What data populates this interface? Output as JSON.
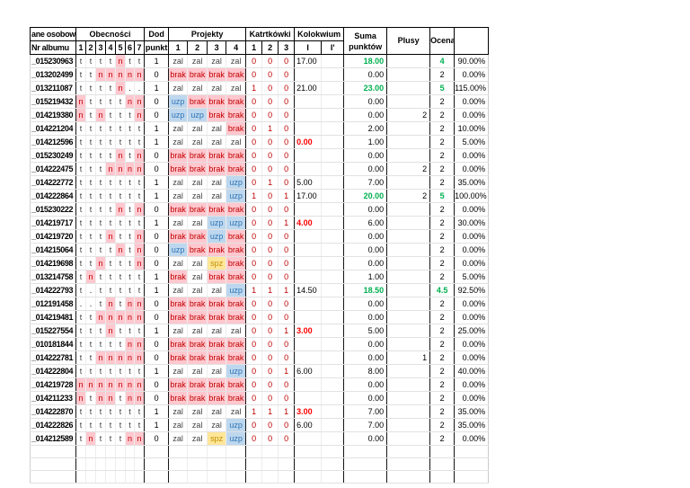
{
  "table": {
    "header": {
      "personal": "ane osobow",
      "nr_albumu": "Nr albumu",
      "obecnosci": "Obecności",
      "att_cols": [
        "1",
        "2",
        "3",
        "4",
        "5",
        "6",
        "7"
      ],
      "dod_line1": "Dod",
      "dod_line2": "punkt",
      "projekty": "Projekty",
      "proj_cols": [
        "1",
        "2",
        "3",
        "4"
      ],
      "kartkowki": "Katrtkówki",
      "kart_cols": [
        "1",
        "2",
        "3"
      ],
      "kolokwium": "Kolokwium",
      "kol_cols": [
        "I",
        "I'"
      ],
      "suma_line1": "Suma",
      "suma_line2": "punktów",
      "plusy": "Plusy",
      "ocena": "Ocena",
      "percent": ""
    },
    "colors": {
      "absent_bg": "#FFC7CE",
      "absent_text": "#C00000",
      "uzp_bg": "#BDD7EE",
      "uzp_text": "#2E75B6",
      "spz_bg": "#FFE699",
      "spz_text": "#BF8F00",
      "kartkowki_text": "#C00000",
      "fail_red": "#FF0000",
      "pass_green": "#00B050"
    },
    "empty_row_count": 3,
    "rows": [
      {
        "album": "_015230963",
        "att": [
          "t",
          "t",
          "t",
          "t",
          "n",
          "t",
          "t"
        ],
        "dod": "1",
        "proj": [
          "zal",
          "zal",
          "zal",
          "zal"
        ],
        "kart": [
          "0",
          "0",
          "0"
        ],
        "kol1": "17.00",
        "kol2": "",
        "suma": "18.00",
        "suma_green": true,
        "plusy": "",
        "ocena": "4",
        "ocena_green": true,
        "percent": "90.00%"
      },
      {
        "album": "_013202499",
        "att": [
          "t",
          "t",
          "n",
          "n",
          "n",
          "n",
          "n"
        ],
        "dod": "0",
        "proj": [
          "brak",
          "brak",
          "brak",
          "brak"
        ],
        "kart": [
          "0",
          "0",
          "0"
        ],
        "kol1": "",
        "kol2": "",
        "suma": "0.00",
        "plusy": "",
        "ocena": "2",
        "percent": "0.00%"
      },
      {
        "album": "_013211087",
        "att": [
          "t",
          "t",
          "t",
          "t",
          "n",
          ".",
          "."
        ],
        "dod": "1",
        "proj": [
          "zal",
          "zal",
          "zal",
          "zal"
        ],
        "kart": [
          "1",
          "0",
          "0"
        ],
        "kol1": "21.00",
        "kol2": "",
        "suma": "23.00",
        "suma_green": true,
        "plusy": "",
        "ocena": "5",
        "ocena_green": true,
        "percent": "115.00%"
      },
      {
        "album": "_015219432",
        "att": [
          "n",
          "t",
          "t",
          "t",
          "t",
          "n",
          "n"
        ],
        "dod": "0",
        "proj": [
          "uzp",
          "brak",
          "brak",
          "brak"
        ],
        "kart": [
          "0",
          "0",
          "0"
        ],
        "kol1": "",
        "kol2": "",
        "suma": "0.00",
        "plusy": "",
        "ocena": "2",
        "percent": "0.00%"
      },
      {
        "album": "_014219380",
        "att": [
          "n",
          "t",
          "n",
          "t",
          "t",
          "t",
          "n"
        ],
        "dod": "0",
        "proj": [
          "uzp",
          "uzp",
          "brak",
          "brak"
        ],
        "kart": [
          "0",
          "0",
          "0"
        ],
        "kol1": "",
        "kol2": "",
        "suma": "0.00",
        "plusy": "2",
        "ocena": "2",
        "percent": "0.00%"
      },
      {
        "album": "_014221204",
        "att": [
          "t",
          "t",
          "t",
          "t",
          "t",
          "t",
          "t"
        ],
        "dod": "1",
        "proj": [
          "zal",
          "zal",
          "zal",
          "brak"
        ],
        "kart": [
          "0",
          "1",
          "0"
        ],
        "kol1": "",
        "kol2": "",
        "suma": "2.00",
        "plusy": "",
        "ocena": "2",
        "percent": "10.00%"
      },
      {
        "album": "_014212596",
        "att": [
          "t",
          "t",
          "t",
          "t",
          "t",
          "t",
          "t"
        ],
        "dod": "1",
        "proj": [
          "zal",
          "zal",
          "zal",
          "zal"
        ],
        "kart": [
          "0",
          "0",
          "0"
        ],
        "kol1": "0.00",
        "kol1_red": true,
        "kol2": "",
        "suma": "1.00",
        "plusy": "",
        "ocena": "2",
        "percent": "5.00%"
      },
      {
        "album": "_015230249",
        "att": [
          "t",
          "t",
          "t",
          "t",
          "n",
          "t",
          "n"
        ],
        "dod": "0",
        "proj": [
          "brak",
          "brak",
          "brak",
          "brak"
        ],
        "kart": [
          "0",
          "0",
          "0"
        ],
        "kol1": "",
        "kol2": "",
        "suma": "0.00",
        "plusy": "",
        "ocena": "2",
        "percent": "0.00%"
      },
      {
        "album": "_014222475",
        "att": [
          "t",
          "t",
          "t",
          "n",
          "n",
          "n",
          "n"
        ],
        "dod": "0",
        "proj": [
          "brak",
          "brak",
          "brak",
          "brak"
        ],
        "kart": [
          "0",
          "0",
          "0"
        ],
        "kol1": "",
        "kol2": "",
        "suma": "0.00",
        "plusy": "2",
        "ocena": "2",
        "percent": "0.00%"
      },
      {
        "album": "_014222772",
        "att": [
          "t",
          "t",
          "t",
          "t",
          "t",
          "t",
          "t"
        ],
        "dod": "1",
        "proj": [
          "zal",
          "zal",
          "zal",
          "uzp"
        ],
        "kart": [
          "0",
          "1",
          "0"
        ],
        "kol1": "5.00",
        "kol2": "",
        "suma": "7.00",
        "plusy": "",
        "ocena": "2",
        "percent": "35.00%"
      },
      {
        "album": "_014222864",
        "att": [
          "t",
          "t",
          "t",
          "t",
          "t",
          "t",
          "t"
        ],
        "dod": "1",
        "proj": [
          "zal",
          "zal",
          "zal",
          "uzp"
        ],
        "kart": [
          "1",
          "0",
          "1"
        ],
        "kol1": "17.00",
        "kol2": "",
        "suma": "20.00",
        "suma_green": true,
        "plusy": "2",
        "ocena": "5",
        "ocena_green": true,
        "percent": "100.00%"
      },
      {
        "album": "_015230222",
        "att": [
          "t",
          "t",
          "t",
          "t",
          "n",
          "t",
          "n"
        ],
        "dod": "0",
        "proj": [
          "brak",
          "brak",
          "brak",
          "brak"
        ],
        "kart": [
          "0",
          "0",
          "0"
        ],
        "kol1": "",
        "kol2": "",
        "suma": "0.00",
        "plusy": "",
        "ocena": "2",
        "percent": "0.00%"
      },
      {
        "album": "_014219717",
        "att": [
          "t",
          "t",
          "t",
          "t",
          "t",
          "t",
          "t"
        ],
        "dod": "1",
        "proj": [
          "zal",
          "zal",
          "uzp",
          "uzp"
        ],
        "kart": [
          "0",
          "0",
          "1"
        ],
        "kol1": "4.00",
        "kol1_red": true,
        "kol2": "",
        "suma": "6.00",
        "plusy": "",
        "ocena": "2",
        "percent": "30.00%"
      },
      {
        "album": "_014219720",
        "att": [
          "t",
          "t",
          "t",
          "n",
          "t",
          "t",
          "n"
        ],
        "dod": "0",
        "proj": [
          "brak",
          "brak",
          "uzp",
          "brak"
        ],
        "kart": [
          "0",
          "0",
          "0"
        ],
        "kol1": "",
        "kol2": "",
        "suma": "0.00",
        "plusy": "",
        "ocena": "2",
        "percent": "0.00%"
      },
      {
        "album": "_014215064",
        "att": [
          "t",
          "t",
          "t",
          "t",
          "n",
          "t",
          "n"
        ],
        "dod": "0",
        "proj": [
          "uzp",
          "brak",
          "brak",
          "brak"
        ],
        "kart": [
          "0",
          "0",
          "0"
        ],
        "kol1": "",
        "kol2": "",
        "suma": "0.00",
        "plusy": "",
        "ocena": "2",
        "percent": "0.00%"
      },
      {
        "album": "_014219698",
        "att": [
          "t",
          "t",
          "n",
          "t",
          "t",
          "t",
          "n"
        ],
        "dod": "0",
        "proj": [
          "zal",
          "zal",
          "spz",
          "brak"
        ],
        "kart": [
          "0",
          "0",
          "0"
        ],
        "kol1": "",
        "kol2": "",
        "suma": "0.00",
        "plusy": "",
        "ocena": "2",
        "percent": "0.00%"
      },
      {
        "album": "_013214758",
        "att": [
          "t",
          "n",
          "t",
          "t",
          "t",
          "t",
          "t"
        ],
        "dod": "1",
        "proj": [
          "brak",
          "zal",
          "brak",
          "brak"
        ],
        "kart": [
          "0",
          "0",
          "0"
        ],
        "kol1": "",
        "kol2": "",
        "suma": "1.00",
        "plusy": "",
        "ocena": "2",
        "percent": "5.00%"
      },
      {
        "album": "_014222793",
        "att": [
          "t",
          ".",
          "t",
          "t",
          "t",
          "t",
          "t"
        ],
        "dod": "1",
        "proj": [
          "zal",
          "zal",
          "zal",
          "uzp"
        ],
        "kart": [
          "1",
          "1",
          "1"
        ],
        "kol1": "14.50",
        "kol2": "",
        "suma": "18.50",
        "suma_green": true,
        "plusy": "",
        "ocena": "4.5",
        "ocena_green": true,
        "percent": "92.50%"
      },
      {
        "album": "_012191458",
        "att": [
          ".",
          ".",
          "t",
          "n",
          "t",
          "n",
          "n"
        ],
        "dod": "0",
        "proj": [
          "brak",
          "brak",
          "brak",
          "brak"
        ],
        "kart": [
          "0",
          "0",
          "0"
        ],
        "kol1": "",
        "kol2": "",
        "suma": "0.00",
        "plusy": "",
        "ocena": "2",
        "percent": "0.00%"
      },
      {
        "album": "_014219481",
        "att": [
          "t",
          "t",
          "n",
          "n",
          "n",
          "n",
          "n"
        ],
        "dod": "0",
        "proj": [
          "brak",
          "brak",
          "brak",
          "brak"
        ],
        "kart": [
          "0",
          "0",
          "0"
        ],
        "kol1": "",
        "kol2": "",
        "suma": "0.00",
        "plusy": "",
        "ocena": "2",
        "percent": "0.00%"
      },
      {
        "album": "_015227554",
        "att": [
          "t",
          "t",
          "t",
          "n",
          "t",
          "t",
          "t"
        ],
        "dod": "1",
        "proj": [
          "zal",
          "zal",
          "zal",
          "zal"
        ],
        "kart": [
          "0",
          "0",
          "1"
        ],
        "kol1": "3.00",
        "kol1_red": true,
        "kol2": "",
        "suma": "5.00",
        "plusy": "",
        "ocena": "2",
        "percent": "25.00%"
      },
      {
        "album": "_010181844",
        "att": [
          "t",
          "t",
          "t",
          "t",
          "t",
          "n",
          "n"
        ],
        "dod": "0",
        "proj": [
          "brak",
          "brak",
          "brak",
          "brak"
        ],
        "kart": [
          "0",
          "0",
          "0"
        ],
        "kol1": "",
        "kol2": "",
        "suma": "0.00",
        "plusy": "",
        "ocena": "2",
        "percent": "0.00%"
      },
      {
        "album": "_014222781",
        "att": [
          "t",
          "t",
          "n",
          "n",
          "n",
          "n",
          "n"
        ],
        "dod": "0",
        "proj": [
          "brak",
          "brak",
          "brak",
          "brak"
        ],
        "kart": [
          "0",
          "0",
          "0"
        ],
        "kol1": "",
        "kol2": "",
        "suma": "0.00",
        "plusy": "1",
        "ocena": "2",
        "percent": "0.00%"
      },
      {
        "album": "_014222804",
        "att": [
          "t",
          "t",
          "t",
          "t",
          "t",
          "t",
          "t"
        ],
        "dod": "1",
        "proj": [
          "zal",
          "zal",
          "zal",
          "uzp"
        ],
        "kart": [
          "0",
          "0",
          "1"
        ],
        "kol1": "6.00",
        "kol2": "",
        "suma": "8.00",
        "plusy": "",
        "ocena": "2",
        "percent": "40.00%"
      },
      {
        "album": "_014219728",
        "att": [
          "n",
          "n",
          "n",
          "n",
          "n",
          "n",
          "n"
        ],
        "dod": "0",
        "proj": [
          "brak",
          "brak",
          "brak",
          "brak"
        ],
        "kart": [
          "0",
          "0",
          "0"
        ],
        "kol1": "",
        "kol2": "",
        "suma": "0.00",
        "plusy": "",
        "ocena": "2",
        "percent": "0.00%"
      },
      {
        "album": "_014211233",
        "att": [
          "n",
          "t",
          "n",
          "n",
          "t",
          "n",
          "n"
        ],
        "dod": "0",
        "proj": [
          "brak",
          "brak",
          "brak",
          "brak"
        ],
        "kart": [
          "0",
          "0",
          "0"
        ],
        "kol1": "",
        "kol2": "",
        "suma": "0.00",
        "plusy": "",
        "ocena": "2",
        "percent": "0.00%"
      },
      {
        "album": "_014222870",
        "att": [
          "t",
          "t",
          "t",
          "t",
          "t",
          "t",
          "t"
        ],
        "dod": "1",
        "proj": [
          "zal",
          "zal",
          "zal",
          "zal"
        ],
        "kart": [
          "1",
          "1",
          "1"
        ],
        "kol1": "3.00",
        "kol1_red": true,
        "kol2": "",
        "suma": "7.00",
        "plusy": "",
        "ocena": "2",
        "percent": "35.00%"
      },
      {
        "album": "_014222826",
        "att": [
          "t",
          "t",
          "t",
          "t",
          "t",
          "t",
          "t"
        ],
        "dod": "1",
        "proj": [
          "zal",
          "zal",
          "zal",
          "uzp"
        ],
        "kart": [
          "0",
          "0",
          "0"
        ],
        "kol1": "6.00",
        "kol2": "",
        "suma": "7.00",
        "plusy": "",
        "ocena": "2",
        "percent": "35.00%"
      },
      {
        "album": "_014212589",
        "att": [
          "t",
          "n",
          "t",
          "t",
          "t",
          "n",
          "n"
        ],
        "dod": "0",
        "proj": [
          "zal",
          "zal",
          "spz",
          "uzp"
        ],
        "kart": [
          "0",
          "0",
          "0"
        ],
        "kol1": "",
        "kol2": "",
        "suma": "0.00",
        "plusy": "",
        "ocena": "2",
        "percent": "0.00%"
      }
    ]
  }
}
